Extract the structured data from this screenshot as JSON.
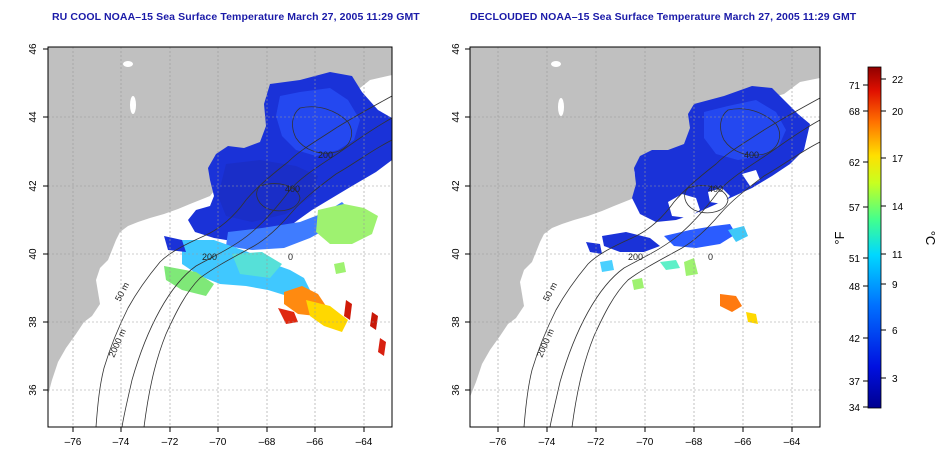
{
  "left_panel": {
    "title": "RU COOL NOAA–15 Sea Surface Temperature March 27, 2005 11:29 GMT",
    "contour_labels": [
      "50 m",
      "2000 m",
      "200",
      "400",
      "200",
      "0"
    ]
  },
  "right_panel": {
    "title": "DECLOUDED NOAA–15 Sea Surface Temperature March 27, 2005 11:29 GMT",
    "contour_labels": [
      "50 m",
      "2000 m",
      "200",
      "400",
      "400",
      "0"
    ]
  },
  "axes": {
    "x_ticks": [
      "–76",
      "–74",
      "–72",
      "–70",
      "–68",
      "–66",
      "–64"
    ],
    "y_ticks": [
      "36",
      "38",
      "40",
      "42",
      "44",
      "46"
    ]
  },
  "colorbar": {
    "unit_f": "°F",
    "unit_c": "°C",
    "f_ticks": [
      "71",
      "68",
      "62",
      "57",
      "51",
      "48",
      "42",
      "37",
      "34"
    ],
    "c_ticks": [
      "22",
      "20",
      "17",
      "14",
      "11",
      "9",
      "6",
      "3"
    ]
  },
  "colors": {
    "land": "#c0c0c0",
    "title": "#1a1aa8",
    "cold": "#1a2fd0",
    "warm": "#c81e0c"
  }
}
